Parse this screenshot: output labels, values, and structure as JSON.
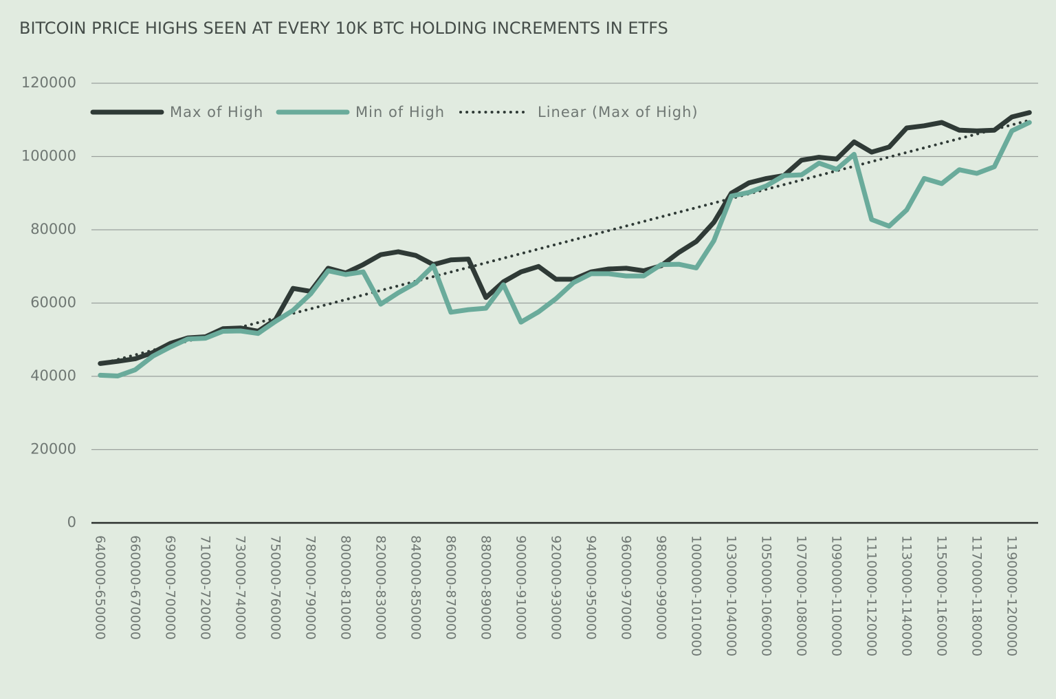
{
  "chart_data": {
    "type": "line",
    "title": "BITCOIN PRICE HIGHS SEEN AT EVERY 10K BTC HOLDING INCREMENTS IN ETFS",
    "categories": [
      "640000-650000",
      null,
      "660000-670000",
      null,
      "690000-700000",
      null,
      "710000-720000",
      null,
      "730000-740000",
      null,
      "750000-760000",
      null,
      "780000-790000",
      null,
      "800000-810000",
      null,
      "820000-830000",
      null,
      "840000-850000",
      null,
      "860000-870000",
      null,
      "880000-890000",
      null,
      "900000-910000",
      null,
      "920000-930000",
      null,
      "940000-950000",
      null,
      "960000-970000",
      null,
      "980000-990000",
      null,
      "1000000-1010000",
      null,
      "1030000-1040000",
      null,
      "1050000-1060000",
      null,
      "1070000-1080000",
      null,
      "1090000-1100000",
      null,
      "1110000-1120000",
      null,
      "1130000-1140000",
      null,
      "1150000-1160000",
      null,
      "1170000-1180000",
      null,
      "1190000-1200000",
      null
    ],
    "series": [
      {
        "name": "Max of High",
        "color": "#2f3a36",
        "values": [
          43500,
          44100,
          44800,
          46500,
          49000,
          50500,
          50800,
          53000,
          53200,
          52300,
          55500,
          64000,
          63200,
          69500,
          68200,
          70500,
          73200,
          74000,
          73000,
          70500,
          71800,
          72000,
          61500,
          65800,
          68500,
          70000,
          66500,
          66500,
          68500,
          69300,
          69500,
          68800,
          70200,
          73800,
          76800,
          82000,
          90000,
          92800,
          94000,
          94800,
          99000,
          99800,
          99300,
          104000,
          101200,
          102600,
          107800,
          108400,
          109300,
          107200,
          107000,
          107200,
          110800,
          112000
        ]
      },
      {
        "name": "Min of High",
        "color": "#6aab9b",
        "values": [
          40300,
          40100,
          41800,
          45500,
          48000,
          50200,
          50400,
          52300,
          52400,
          51700,
          55000,
          58000,
          62500,
          68800,
          67800,
          68500,
          59700,
          62800,
          65500,
          70200,
          57500,
          58200,
          58600,
          65000,
          54800,
          57600,
          61200,
          65600,
          68000,
          68000,
          67400,
          67400,
          70500,
          70600,
          69600,
          77000,
          89200,
          90200,
          92000,
          94800,
          95000,
          98200,
          96500,
          100600,
          82800,
          81000,
          85400,
          94000,
          92600,
          96400,
          95400,
          97200,
          107000,
          109300
        ]
      }
    ],
    "trendline": {
      "name": "Linear (Max of High)",
      "series": 0,
      "color": "#2f3a36"
    },
    "ylim": [
      0,
      120000
    ],
    "yticks": [
      0,
      20000,
      40000,
      60000,
      80000,
      100000,
      120000
    ],
    "grid": true,
    "legend": "top"
  }
}
